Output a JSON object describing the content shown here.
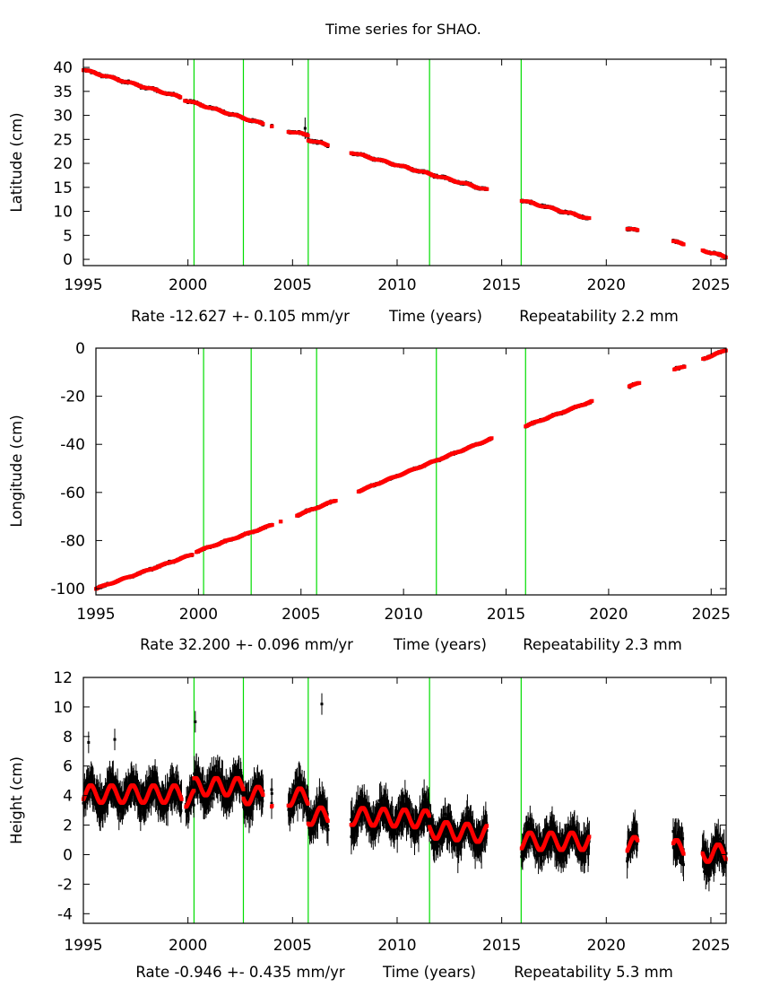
{
  "title": "Time series for SHAO.",
  "colors": {
    "observed": "#000000",
    "fit": "#ff0000",
    "break_lines": "#00dd00"
  },
  "chart_data": [
    {
      "type": "scatter",
      "ylabel": "Latitude (cm)",
      "xlabel": "Time (years)",
      "rate_text": "Rate -12.627 +- 0.105 mm/yr",
      "repeatability_text": "Repeatability 2.2 mm",
      "xlim": [
        1995,
        2025.73
      ],
      "ylim": [
        -1.3,
        41.7
      ],
      "xticks": [
        "1995",
        "2000",
        "2005",
        "2010",
        "2015",
        "2020",
        "2025"
      ],
      "yticks": [
        "0",
        "5",
        "10",
        "15",
        "20",
        "25",
        "30",
        "35",
        "40"
      ],
      "grid": false,
      "break_lines": [
        2000.29,
        2002.65,
        2005.75,
        2011.55,
        2015.93
      ],
      "fit_segments": [
        [
          1995.0,
          1999.65,
          39.5,
          33.8
        ],
        [
          1999.85,
          2003.6,
          33.2,
          28.2
        ],
        [
          2004.0,
          2004.02,
          27.8,
          27.8
        ],
        [
          2004.8,
          2005.75,
          26.7,
          25.9
        ],
        [
          2005.75,
          2006.7,
          24.9,
          23.8
        ],
        [
          2007.8,
          2014.3,
          22.3,
          14.5
        ],
        [
          2015.95,
          2019.2,
          12.3,
          8.5
        ],
        [
          2021.0,
          2021.5,
          6.4,
          6.0
        ],
        [
          2023.2,
          2023.7,
          3.7,
          3.2
        ],
        [
          2024.6,
          2025.73,
          1.9,
          0.5
        ]
      ],
      "seasonal_amplitude": 0.15,
      "scatter_spread": 0.45,
      "outliers": [
        [
          2005.6,
          27.3
        ]
      ]
    },
    {
      "type": "scatter",
      "ylabel": "Longitude (cm)",
      "xlabel": "Time (years)",
      "rate_text": "Rate 32.200 +- 0.096 mm/yr",
      "repeatability_text": "Repeatability 2.3 mm",
      "xlim": [
        1995,
        2025.73
      ],
      "ylim": [
        -102.6,
        0
      ],
      "xticks": [
        "1995",
        "2000",
        "2005",
        "2010",
        "2015",
        "2020",
        "2025"
      ],
      "yticks": [
        "-100",
        "-80",
        "-60",
        "-40",
        "-20",
        "0"
      ],
      "grid": false,
      "break_lines": [
        2000.25,
        2002.57,
        2005.76,
        2011.6,
        2015.95
      ],
      "fit_segments": [
        [
          1995.0,
          1999.7,
          -100.0,
          -85.8
        ],
        [
          1999.9,
          2003.6,
          -84.6,
          -73.5
        ],
        [
          2004.0,
          2004.02,
          -72.0,
          -72.0
        ],
        [
          2004.8,
          2006.7,
          -69.5,
          -63.3
        ],
        [
          2007.8,
          2014.3,
          -59.5,
          -37.6
        ],
        [
          2015.95,
          2019.2,
          -32.4,
          -22.0
        ],
        [
          2021.0,
          2021.5,
          -15.8,
          -14.6
        ],
        [
          2023.2,
          2023.7,
          -9.0,
          -7.6
        ],
        [
          2024.6,
          2025.73,
          -4.5,
          -0.8
        ]
      ],
      "seasonal_amplitude": 0.2,
      "scatter_spread": 0.8,
      "outliers": []
    },
    {
      "type": "scatter",
      "ylabel": "Height (cm)",
      "xlabel": "Time (years)",
      "rate_text": "Rate -0.946 +- 0.435 mm/yr",
      "repeatability_text": "Repeatability 5.3 mm",
      "xlim": [
        1995,
        2025.73
      ],
      "ylim": [
        -4.65,
        12
      ],
      "xticks": [
        "1995",
        "2000",
        "2005",
        "2010",
        "2015",
        "2020",
        "2025"
      ],
      "yticks": [
        "-4",
        "-2",
        "0",
        "2",
        "4",
        "6",
        "8",
        "10",
        "12"
      ],
      "grid": false,
      "break_lines": [
        2000.29,
        2002.65,
        2005.75,
        2011.55,
        2015.93
      ],
      "fit_segments": [
        [
          1995.0,
          1999.7,
          4.1,
          4.1
        ],
        [
          1999.9,
          2000.29,
          3.8,
          3.8
        ],
        [
          2000.29,
          2002.65,
          4.6,
          4.6
        ],
        [
          2002.65,
          2003.6,
          4.0,
          4.0
        ],
        [
          2004.0,
          2004.02,
          3.6,
          3.6
        ],
        [
          2004.8,
          2005.75,
          3.9,
          3.9
        ],
        [
          2005.75,
          2006.7,
          2.6,
          2.6
        ],
        [
          2007.8,
          2011.55,
          2.6,
          2.4
        ],
        [
          2011.55,
          2014.3,
          1.7,
          1.4
        ],
        [
          2015.95,
          2019.2,
          0.9,
          0.9
        ],
        [
          2021.0,
          2021.5,
          0.6,
          0.6
        ],
        [
          2023.2,
          2023.7,
          0.4,
          0.4
        ],
        [
          2024.6,
          2025.73,
          0.1,
          0.1
        ]
      ],
      "seasonal_amplitude": 0.6,
      "scatter_spread": 1.6,
      "outliers": [
        [
          1995.25,
          7.6
        ],
        [
          1996.5,
          7.8
        ],
        [
          2000.35,
          9.0
        ],
        [
          2006.4,
          10.2
        ],
        [
          2004.0,
          4.4
        ]
      ]
    }
  ]
}
